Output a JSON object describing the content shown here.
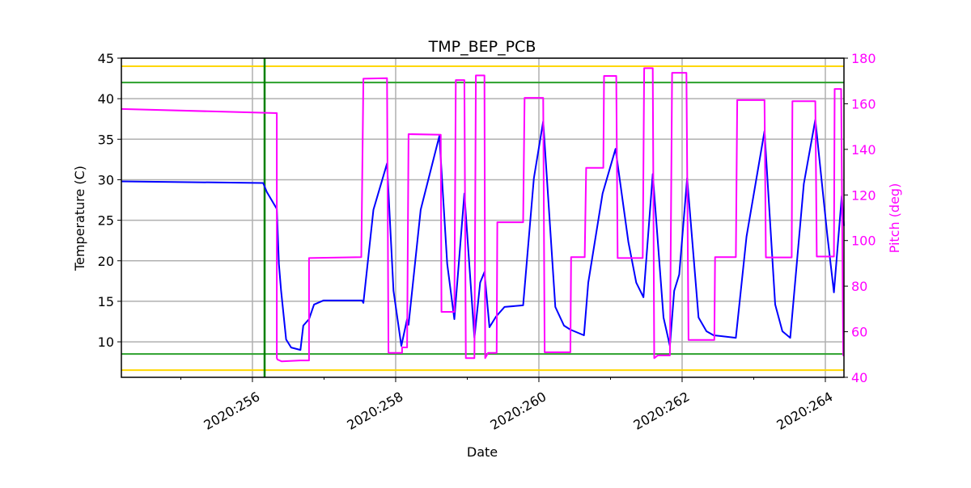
{
  "chart_data": {
    "type": "line",
    "title": "TMP_BEP_PCB",
    "xlabel": "Date",
    "ylabel": "Temperature (C)",
    "y2label": "Pitch (deg)",
    "xlim": [
      254.17,
      264.26
    ],
    "ylim": [
      5.62,
      45
    ],
    "y2lim": [
      40,
      180
    ],
    "grid": true,
    "x_ticks": [
      {
        "value": 256,
        "label": "2020:256"
      },
      {
        "value": 258,
        "label": "2020:258"
      },
      {
        "value": 260,
        "label": "2020:260"
      },
      {
        "value": 262,
        "label": "2020:262"
      },
      {
        "value": 264,
        "label": "2020:264"
      }
    ],
    "x_minor_ticks": [
      255,
      257,
      259,
      261,
      263
    ],
    "y_ticks": [
      10,
      15,
      20,
      25,
      30,
      35,
      40,
      45
    ],
    "y2_ticks": [
      40,
      60,
      80,
      100,
      120,
      140,
      160,
      180
    ],
    "colors": {
      "temperature": "#0000ff",
      "pitch": "#ff00ff",
      "planning_limit": "#2ca02c",
      "caution_limit": "#ffd700",
      "marker": "#008000",
      "grid": "#b0b0b0"
    },
    "limit_lines": [
      {
        "value": 44,
        "color": "#ffd700"
      },
      {
        "value": 6.5,
        "color": "#ffd700"
      },
      {
        "value": 42,
        "color": "#2ca02c"
      },
      {
        "value": 8.5,
        "color": "#2ca02c"
      }
    ],
    "vertical_marker": 256.17,
    "series": [
      {
        "axis": "left",
        "color": "#0000ff",
        "x": [
          254.17,
          256.15,
          256.2,
          256.34,
          256.37,
          256.4,
          256.47,
          256.54,
          256.67,
          256.71,
          256.79,
          256.86,
          256.99,
          257.53,
          257.55,
          257.69,
          257.88,
          257.97,
          258.08,
          258.16,
          258.18,
          258.35,
          258.61,
          258.72,
          258.82,
          258.96,
          259.1,
          259.18,
          259.24,
          259.31,
          259.4,
          259.52,
          259.78,
          259.93,
          260.06,
          260.23,
          260.35,
          260.44,
          260.63,
          260.69,
          260.89,
          261.07,
          261.25,
          261.36,
          261.46,
          261.59,
          261.74,
          261.83,
          261.89,
          261.96,
          262.07,
          262.23,
          262.34,
          262.44,
          262.75,
          262.9,
          263.15,
          263.3,
          263.4,
          263.51,
          263.7,
          263.86,
          264.03,
          264.12,
          264.23,
          264.26
        ],
        "y": [
          29.8,
          29.6,
          28.5,
          26.4,
          19.6,
          16.3,
          10.3,
          9.3,
          9.0,
          12.0,
          12.8,
          14.6,
          15.1,
          15.1,
          14.8,
          26.3,
          32.0,
          16.3,
          9.5,
          12.8,
          12.1,
          26.3,
          35.4,
          19.6,
          12.8,
          28.3,
          10.5,
          17.3,
          18.6,
          11.8,
          13.1,
          14.3,
          14.5,
          30.2,
          37.2,
          14.3,
          12.0,
          11.5,
          10.8,
          17.3,
          28.3,
          33.8,
          22.3,
          17.3,
          15.5,
          30.7,
          13.0,
          9.5,
          16.3,
          18.3,
          30.2,
          13.0,
          11.3,
          10.8,
          10.5,
          23.0,
          36.0,
          14.6,
          11.3,
          10.5,
          29.5,
          37.4,
          23.0,
          16.1,
          28.0,
          24.3
        ]
      },
      {
        "axis": "right",
        "color": "#ff00ff",
        "x": [
          254.17,
          256.34,
          256.34,
          256.35,
          256.41,
          256.67,
          256.79,
          256.79,
          257.52,
          257.55,
          257.88,
          257.9,
          258.09,
          258.09,
          258.16,
          258.18,
          258.63,
          258.64,
          258.82,
          258.84,
          258.96,
          258.98,
          259.1,
          259.12,
          259.24,
          259.25,
          259.29,
          259.41,
          259.42,
          259.78,
          259.8,
          260.06,
          260.08,
          260.44,
          260.45,
          260.64,
          260.66,
          260.9,
          260.91,
          261.08,
          261.1,
          261.45,
          261.47,
          261.59,
          261.61,
          261.66,
          261.83,
          261.86,
          262.06,
          262.09,
          262.45,
          262.46,
          262.75,
          262.77,
          263.15,
          263.17,
          263.53,
          263.54,
          263.86,
          263.88,
          264.12,
          264.13,
          264.22,
          264.25,
          264.26
        ],
        "y": [
          157.7,
          155.9,
          48.5,
          47.8,
          47.0,
          47.4,
          47.4,
          92.3,
          92.7,
          171.0,
          171.2,
          50.7,
          50.7,
          53.1,
          53.1,
          146.7,
          146.4,
          68.7,
          68.7,
          170.4,
          170.4,
          48.4,
          48.4,
          172.4,
          172.4,
          48.4,
          50.7,
          50.7,
          108.0,
          108.0,
          162.6,
          162.6,
          51.0,
          51.0,
          92.7,
          92.7,
          131.9,
          131.9,
          172.2,
          172.2,
          92.3,
          92.3,
          175.6,
          175.6,
          48.4,
          49.6,
          49.6,
          173.6,
          173.6,
          56.4,
          56.4,
          92.7,
          92.7,
          161.6,
          161.6,
          92.6,
          92.6,
          161.1,
          161.1,
          93.0,
          93.0,
          166.5,
          166.5,
          49.6,
          49.6
        ]
      }
    ]
  }
}
